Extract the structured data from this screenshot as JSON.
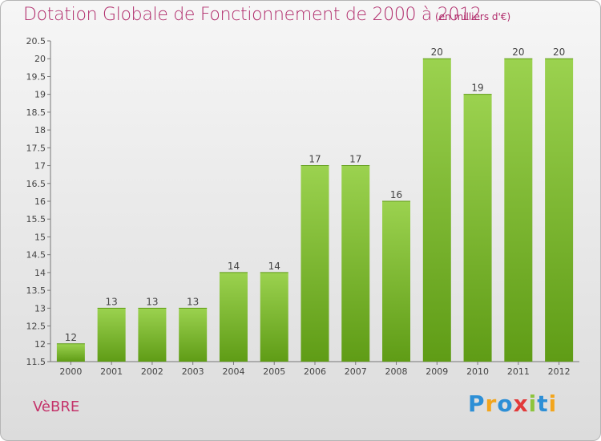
{
  "header": {
    "title": "Dotation Globale de Fonctionnement de 2000 à 2012",
    "unit": "(en milliers d'€)"
  },
  "footer": {
    "commune": "VèBRE",
    "logo_letters": [
      "P",
      "r",
      "o",
      "x",
      "i",
      "t",
      "i"
    ]
  },
  "colors": {
    "title": "#b02a6a",
    "bar_top": "#9bd24f",
    "bar_bottom": "#5f9c16"
  },
  "chart_data": {
    "type": "bar",
    "title": "Dotation Globale de Fonctionnement de 2000 à 2012",
    "subtitle": "(en milliers d'€)",
    "categories": [
      "2000",
      "2001",
      "2002",
      "2003",
      "2004",
      "2005",
      "2006",
      "2007",
      "2008",
      "2009",
      "2010",
      "2011",
      "2012"
    ],
    "values": [
      12,
      13,
      13,
      13,
      14,
      14,
      17,
      17,
      16,
      20,
      19,
      20,
      20
    ],
    "ylim": [
      11.5,
      20.5
    ],
    "yticks": [
      "11.5",
      "12",
      "12.5",
      "13",
      "13.5",
      "14",
      "14.5",
      "15",
      "15.5",
      "16",
      "16.5",
      "17",
      "17.5",
      "18",
      "18.5",
      "19",
      "19.5",
      "20",
      "20.5"
    ],
    "grid": false
  }
}
